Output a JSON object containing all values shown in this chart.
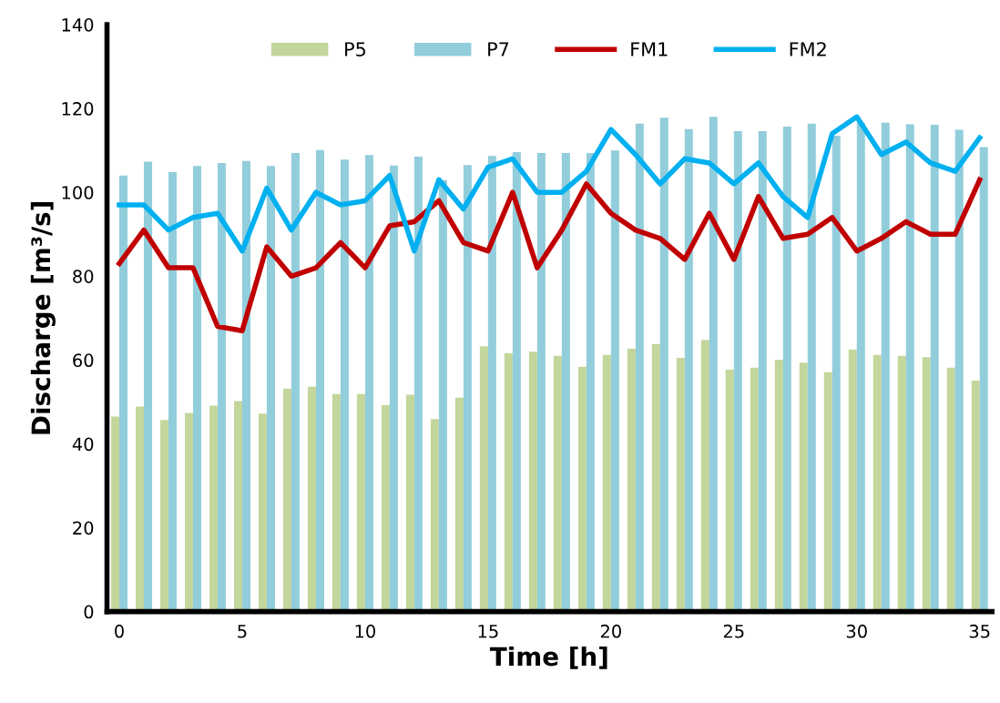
{
  "chart_data": {
    "type": "bar",
    "xlabel": "Time [h]",
    "ylabel": "Discharge [m³/s]",
    "x": [
      0,
      1,
      2,
      3,
      4,
      5,
      6,
      7,
      8,
      9,
      10,
      11,
      12,
      13,
      14,
      15,
      16,
      17,
      18,
      19,
      20,
      21,
      22,
      23,
      24,
      25,
      26,
      27,
      28,
      29,
      30,
      31,
      32,
      33,
      34,
      35
    ],
    "xlim": [
      -0.5,
      35.5
    ],
    "xticks": [
      0,
      5,
      10,
      15,
      20,
      25,
      30,
      35
    ],
    "ylim": [
      0,
      140
    ],
    "yticks": [
      0,
      20,
      40,
      60,
      80,
      100,
      120,
      140
    ],
    "grid": false,
    "legend": "top",
    "series": [
      {
        "name": "P5",
        "color": "#c3d69b",
        "values": [
          46.5,
          48.9,
          45.7,
          47.4,
          49.1,
          50.2,
          47.2,
          53.2,
          53.6,
          51.9,
          51.9,
          49.3,
          51.7,
          45.9,
          51.0,
          63.3,
          61.6,
          62.0,
          61.0,
          58.4,
          61.2,
          62.7,
          63.8,
          60.5,
          64.8,
          57.7,
          58.2,
          60.1,
          59.4,
          57.1,
          62.5,
          61.2,
          61.0,
          60.7,
          58.2,
          55.1
        ]
      },
      {
        "name": "P7",
        "color": "#92cddc",
        "values": [
          104.0,
          107.3,
          104.8,
          106.3,
          107.0,
          107.5,
          106.3,
          109.4,
          110.1,
          107.8,
          108.9,
          106.4,
          108.5,
          102.9,
          106.5,
          108.7,
          109.6,
          109.4,
          109.4,
          109.4,
          110.0,
          116.4,
          117.8,
          115.1,
          118.0,
          114.6,
          114.6,
          115.7,
          116.4,
          113.5,
          116.6,
          116.6,
          116.2,
          116.1,
          114.9,
          110.8
        ]
      },
      {
        "name": "FM1",
        "type": "line",
        "color": "#c00000",
        "values": [
          83,
          91,
          82,
          82,
          68,
          67,
          87,
          80,
          82,
          88,
          82,
          92,
          93,
          98,
          88,
          86,
          100,
          82,
          91,
          102,
          95,
          91,
          89,
          84,
          95,
          84,
          99,
          89,
          90,
          94,
          86,
          89,
          93,
          90,
          90,
          103
        ]
      },
      {
        "name": "FM2",
        "type": "line",
        "color": "#00b0f0",
        "values": [
          97,
          97,
          91,
          94,
          95,
          86,
          101,
          91,
          100,
          97,
          98,
          104,
          86,
          103,
          96,
          106,
          108,
          100,
          100,
          105,
          115,
          109,
          102,
          108,
          107,
          102,
          107,
          99,
          94,
          114,
          118,
          109,
          112,
          107,
          105,
          113
        ]
      }
    ]
  }
}
